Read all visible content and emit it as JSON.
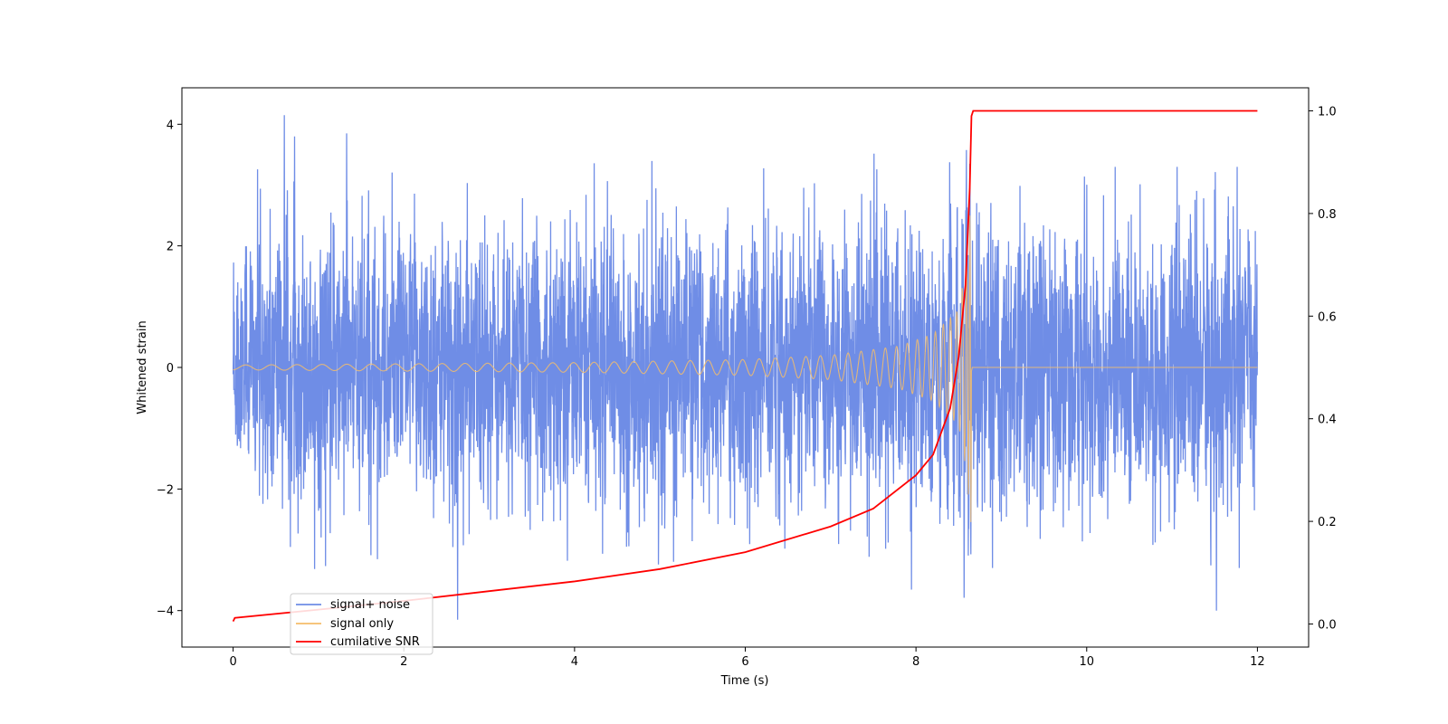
{
  "chart_data": {
    "type": "line",
    "xlabel": "Time (s)",
    "ylabel": "Whitened strain",
    "y2label": "",
    "xlim": [
      -0.6,
      12.6
    ],
    "ylim": [
      -4.6,
      4.6
    ],
    "y2lim": [
      -0.045,
      1.045
    ],
    "xticks": [
      0,
      2,
      4,
      6,
      8,
      10,
      12
    ],
    "yticks": [
      -4,
      -2,
      0,
      2,
      4
    ],
    "y2ticks": [
      0.0,
      0.2,
      0.4,
      0.6,
      0.8,
      1.0
    ],
    "grid": false,
    "legend": {
      "position": "lower-left",
      "entries": [
        {
          "name": "signal+ noise",
          "color": "#6f8de6"
        },
        {
          "name": "signal only",
          "color": "#f5bd6a"
        },
        {
          "name": "cumilative SNR",
          "color": "#ff0000"
        }
      ]
    },
    "series": [
      {
        "name": "signal+ noise",
        "axis": "left",
        "color": "#6f8de6",
        "x_range": [
          0,
          12
        ],
        "typical_amplitude": 2.0,
        "extreme_peaks": [
          {
            "x": 0.6,
            "y": 4.15
          },
          {
            "x": 0.72,
            "y": 3.8
          },
          {
            "x": 1.33,
            "y": 3.85
          },
          {
            "x": 2.63,
            "y": -4.15
          },
          {
            "x": 8.63,
            "y": 3.35
          },
          {
            "x": 11.52,
            "y": -4.0
          }
        ]
      },
      {
        "name": "signal only",
        "axis": "left",
        "color": "#f5bd6a",
        "x_range": [
          0,
          8.65
        ],
        "envelope": [
          {
            "x": 0,
            "y": 0.04
          },
          {
            "x": 4,
            "y": 0.08
          },
          {
            "x": 6,
            "y": 0.13
          },
          {
            "x": 7,
            "y": 0.2
          },
          {
            "x": 7.8,
            "y": 0.35
          },
          {
            "x": 8.2,
            "y": 0.55
          },
          {
            "x": 8.5,
            "y": 0.95
          },
          {
            "x": 8.6,
            "y": 1.8
          },
          {
            "x": 8.65,
            "y": 2.9
          }
        ],
        "flat_after": 8.66
      },
      {
        "name": "cumilative SNR",
        "axis": "right",
        "color": "#ff0000",
        "points": [
          {
            "x": 0,
            "y": 0.005
          },
          {
            "x": 0.02,
            "y": 0.012
          },
          {
            "x": 1,
            "y": 0.028
          },
          {
            "x": 2,
            "y": 0.045
          },
          {
            "x": 3,
            "y": 0.064
          },
          {
            "x": 4,
            "y": 0.083
          },
          {
            "x": 5,
            "y": 0.107
          },
          {
            "x": 6,
            "y": 0.14
          },
          {
            "x": 7,
            "y": 0.19
          },
          {
            "x": 7.5,
            "y": 0.225
          },
          {
            "x": 8,
            "y": 0.29
          },
          {
            "x": 8.2,
            "y": 0.33
          },
          {
            "x": 8.4,
            "y": 0.42
          },
          {
            "x": 8.5,
            "y": 0.52
          },
          {
            "x": 8.58,
            "y": 0.66
          },
          {
            "x": 8.63,
            "y": 0.85
          },
          {
            "x": 8.65,
            "y": 0.99
          },
          {
            "x": 8.67,
            "y": 1.0
          },
          {
            "x": 12,
            "y": 1.0
          }
        ]
      }
    ]
  }
}
